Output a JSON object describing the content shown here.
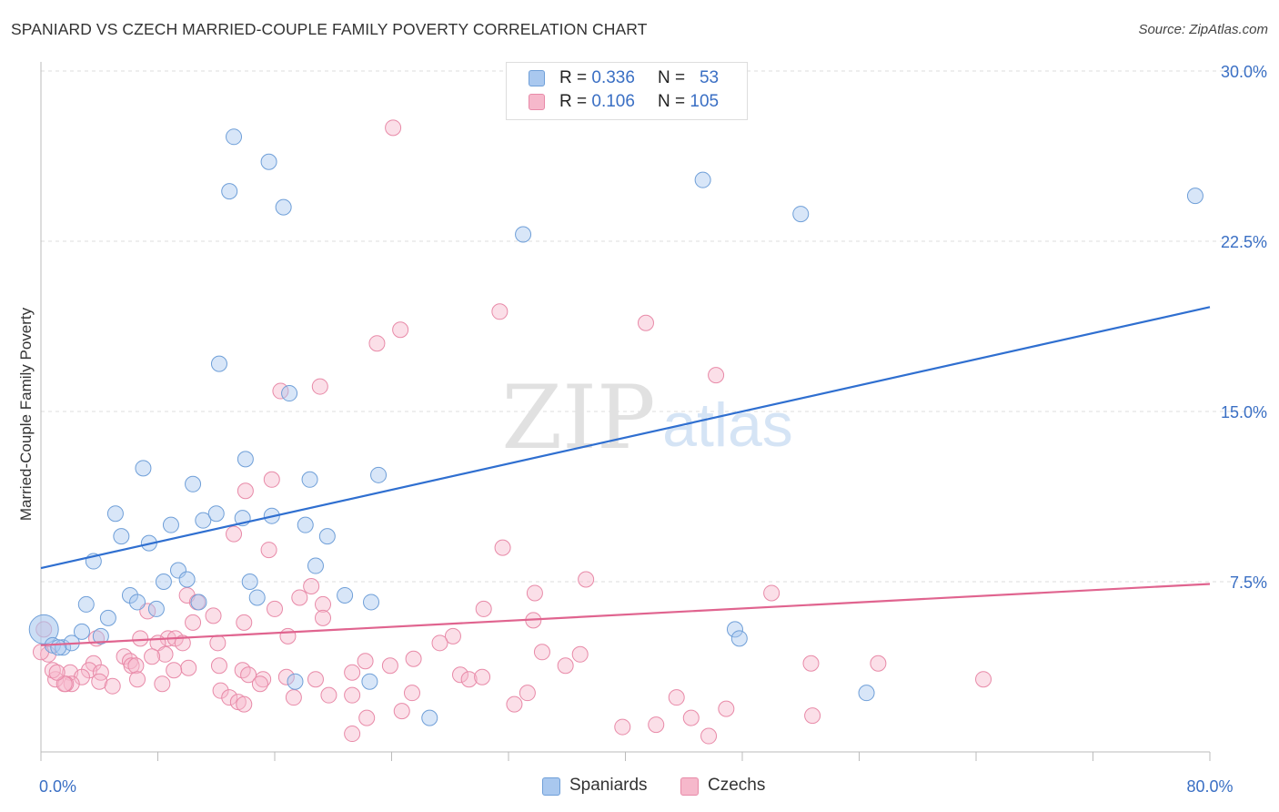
{
  "header": {
    "title": "SPANIARD VS CZECH MARRIED-COUPLE FAMILY POVERTY CORRELATION CHART",
    "source": "Source: ZipAtlas.com"
  },
  "watermark": {
    "zip": "ZIP",
    "atlas": "atlas"
  },
  "legend_top": [
    {
      "r_label": "R =",
      "r_value": "0.336",
      "n_label": "N =",
      "n_value": "53"
    },
    {
      "r_label": "R =",
      "r_value": "0.106",
      "n_label": "N =",
      "n_value": "105"
    }
  ],
  "legend_bottom": [
    {
      "label": "Spaniards"
    },
    {
      "label": "Czechs"
    }
  ],
  "colors": {
    "spaniards_fill": "#a9c8ef",
    "spaniards_stroke": "#6f9fd8",
    "spaniards_line": "#2f6fd0",
    "czechs_fill": "#f6b8cb",
    "czechs_stroke": "#e88aa8",
    "czechs_line": "#e0648f",
    "tick_label": "#3a6fc4",
    "grid": "#dddddd"
  },
  "chart_data": {
    "type": "scatter",
    "title": "SPANIARD VS CZECH MARRIED-COUPLE FAMILY POVERTY CORRELATION CHART",
    "xlabel": "",
    "ylabel": "Married-Couple Family Poverty",
    "xlim": [
      0,
      80
    ],
    "ylim": [
      0,
      30
    ],
    "x_tick_labels": [
      "0.0%",
      "80.0%"
    ],
    "y_ticks": [
      7.5,
      15.0,
      22.5,
      30.0
    ],
    "y_tick_labels": [
      "7.5%",
      "15.0%",
      "22.5%",
      "30.0%"
    ],
    "grid": true,
    "series": [
      {
        "name": "Spaniards",
        "r": 0.336,
        "n": 53,
        "trend": {
          "x": [
            0,
            80
          ],
          "y": [
            8.1,
            19.6
          ]
        },
        "points": [
          [
            13.2,
            27.1
          ],
          [
            15.6,
            26.0
          ],
          [
            12.9,
            24.7
          ],
          [
            16.6,
            24.0
          ],
          [
            33.0,
            22.8
          ],
          [
            45.3,
            25.2
          ],
          [
            52.0,
            23.7
          ],
          [
            79.0,
            24.5
          ],
          [
            12.2,
            17.1
          ],
          [
            17.0,
            15.8
          ],
          [
            7.0,
            12.5
          ],
          [
            14.0,
            12.9
          ],
          [
            10.4,
            11.8
          ],
          [
            18.4,
            12.0
          ],
          [
            23.1,
            12.2
          ],
          [
            5.1,
            10.5
          ],
          [
            8.9,
            10.0
          ],
          [
            11.1,
            10.2
          ],
          [
            12.0,
            10.5
          ],
          [
            13.8,
            10.3
          ],
          [
            15.8,
            10.4
          ],
          [
            18.1,
            10.0
          ],
          [
            5.5,
            9.5
          ],
          [
            7.4,
            9.2
          ],
          [
            19.6,
            9.5
          ],
          [
            3.6,
            8.4
          ],
          [
            9.4,
            8.0
          ],
          [
            8.4,
            7.5
          ],
          [
            10.0,
            7.6
          ],
          [
            14.3,
            7.5
          ],
          [
            18.8,
            8.2
          ],
          [
            6.1,
            6.9
          ],
          [
            3.1,
            6.5
          ],
          [
            6.6,
            6.6
          ],
          [
            7.9,
            6.3
          ],
          [
            10.8,
            6.6
          ],
          [
            14.8,
            6.8
          ],
          [
            20.8,
            6.9
          ],
          [
            22.6,
            6.6
          ],
          [
            4.6,
            5.9
          ],
          [
            2.8,
            5.3
          ],
          [
            4.1,
            5.1
          ],
          [
            0.2,
            5.4
          ],
          [
            0.8,
            4.7
          ],
          [
            1.5,
            4.6
          ],
          [
            2.1,
            4.8
          ],
          [
            1.2,
            4.6
          ],
          [
            47.5,
            5.4
          ],
          [
            47.8,
            5.0
          ],
          [
            17.4,
            3.1
          ],
          [
            22.5,
            3.1
          ],
          [
            26.6,
            1.5
          ],
          [
            56.5,
            2.6
          ]
        ]
      },
      {
        "name": "Czechs",
        "r": 0.106,
        "n": 105,
        "trend": {
          "x": [
            0,
            80
          ],
          "y": [
            4.7,
            7.4
          ]
        },
        "points": [
          [
            24.1,
            27.5
          ],
          [
            31.4,
            19.4
          ],
          [
            41.4,
            18.9
          ],
          [
            24.6,
            18.6
          ],
          [
            23.0,
            18.0
          ],
          [
            46.2,
            16.6
          ],
          [
            16.4,
            15.9
          ],
          [
            19.1,
            16.1
          ],
          [
            15.8,
            12.0
          ],
          [
            14.0,
            11.5
          ],
          [
            13.2,
            9.6
          ],
          [
            15.6,
            8.9
          ],
          [
            31.6,
            9.0
          ],
          [
            37.3,
            7.6
          ],
          [
            18.5,
            7.3
          ],
          [
            50.0,
            7.0
          ],
          [
            33.8,
            7.0
          ],
          [
            10.0,
            6.9
          ],
          [
            17.7,
            6.8
          ],
          [
            10.7,
            6.6
          ],
          [
            16.0,
            6.3
          ],
          [
            19.3,
            6.5
          ],
          [
            30.3,
            6.3
          ],
          [
            7.3,
            6.2
          ],
          [
            11.8,
            6.0
          ],
          [
            19.3,
            5.9
          ],
          [
            10.4,
            5.7
          ],
          [
            13.9,
            5.7
          ],
          [
            33.7,
            5.8
          ],
          [
            8.7,
            5.0
          ],
          [
            3.8,
            5.0
          ],
          [
            6.8,
            5.0
          ],
          [
            9.2,
            5.0
          ],
          [
            8.0,
            4.8
          ],
          [
            9.7,
            4.8
          ],
          [
            12.1,
            4.8
          ],
          [
            16.9,
            5.1
          ],
          [
            28.2,
            5.1
          ],
          [
            27.3,
            4.8
          ],
          [
            0.5,
            4.3
          ],
          [
            34.3,
            4.4
          ],
          [
            36.9,
            4.3
          ],
          [
            25.5,
            4.1
          ],
          [
            8.5,
            4.3
          ],
          [
            7.6,
            4.2
          ],
          [
            5.7,
            4.2
          ],
          [
            6.1,
            4.0
          ],
          [
            3.6,
            3.9
          ],
          [
            6.2,
            3.8
          ],
          [
            6.5,
            3.8
          ],
          [
            10.1,
            3.7
          ],
          [
            12.2,
            3.8
          ],
          [
            13.8,
            3.6
          ],
          [
            3.3,
            3.6
          ],
          [
            4.1,
            3.5
          ],
          [
            9.1,
            3.6
          ],
          [
            21.3,
            3.5
          ],
          [
            22.2,
            4.0
          ],
          [
            23.9,
            3.8
          ],
          [
            14.2,
            3.4
          ],
          [
            2.0,
            3.5
          ],
          [
            2.8,
            3.3
          ],
          [
            1.0,
            3.2
          ],
          [
            2.1,
            3.0
          ],
          [
            4.0,
            3.1
          ],
          [
            6.6,
            3.2
          ],
          [
            15.2,
            3.2
          ],
          [
            16.8,
            3.3
          ],
          [
            18.8,
            3.2
          ],
          [
            28.7,
            3.4
          ],
          [
            29.3,
            3.2
          ],
          [
            30.2,
            3.3
          ],
          [
            35.9,
            3.8
          ],
          [
            52.7,
            3.9
          ],
          [
            57.3,
            3.9
          ],
          [
            64.5,
            3.2
          ],
          [
            1.7,
            3.0
          ],
          [
            0.8,
            3.6
          ],
          [
            1.6,
            3.0
          ],
          [
            4.9,
            2.9
          ],
          [
            8.3,
            3.0
          ],
          [
            15.0,
            3.0
          ],
          [
            12.3,
            2.7
          ],
          [
            17.3,
            2.4
          ],
          [
            19.7,
            2.5
          ],
          [
            21.3,
            2.5
          ],
          [
            25.4,
            2.6
          ],
          [
            33.3,
            2.6
          ],
          [
            12.9,
            2.4
          ],
          [
            13.5,
            2.2
          ],
          [
            13.9,
            2.1
          ],
          [
            32.4,
            2.1
          ],
          [
            24.7,
            1.8
          ],
          [
            43.5,
            2.4
          ],
          [
            46.9,
            1.9
          ],
          [
            22.3,
            1.5
          ],
          [
            42.1,
            1.2
          ],
          [
            44.5,
            1.5
          ],
          [
            39.8,
            1.1
          ],
          [
            21.3,
            0.8
          ],
          [
            45.7,
            0.7
          ],
          [
            52.8,
            1.6
          ],
          [
            0.2,
            5.4
          ],
          [
            0.0,
            4.4
          ],
          [
            1.1,
            3.5
          ]
        ]
      }
    ]
  }
}
